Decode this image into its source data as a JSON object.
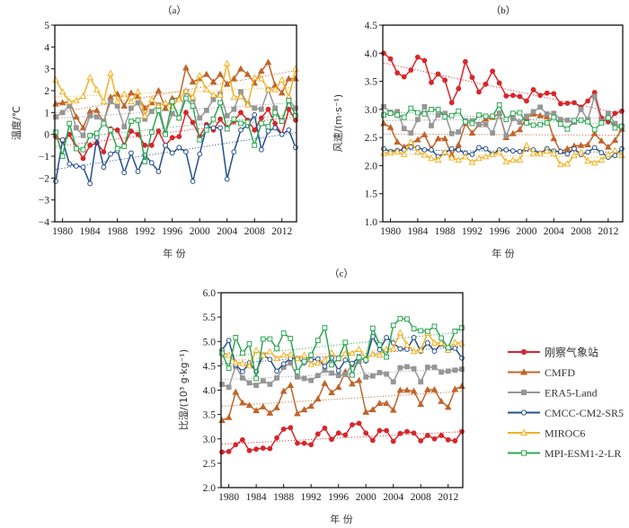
{
  "legend": [
    {
      "name": "刚察气象站",
      "color": "#d7262b",
      "marker": "filled-circle"
    },
    {
      "name": "CMFD",
      "color": "#c0642a",
      "marker": "filled-triangle"
    },
    {
      "name": "ERA5-Land",
      "color": "#969696",
      "marker": "filled-square"
    },
    {
      "name": "CMCC-CM2-SR5",
      "color": "#264f8c",
      "marker": "open-circle"
    },
    {
      "name": "MIROC6",
      "color": "#f2b225",
      "marker": "open-triangle"
    },
    {
      "name": "MPI-ESM1-2-LR",
      "color": "#2ea653",
      "marker": "open-square"
    }
  ],
  "chart_data": [
    {
      "type": "line",
      "panel": "（a）",
      "title": "",
      "xlabel": "年 份",
      "ylabel": "温度/℃",
      "xlim": [
        1979,
        2014
      ],
      "ylim": [
        -4,
        5
      ],
      "yticks": [
        -4,
        -3,
        -2,
        -1,
        0,
        1,
        2,
        3,
        4,
        5
      ],
      "ytick_labels": [
        "−4",
        "−3",
        "−2",
        "−1",
        "0",
        "1",
        "2",
        "3",
        "4",
        "5"
      ],
      "xticks": [
        1980,
        1984,
        1988,
        1992,
        1996,
        2000,
        2004,
        2008,
        2012
      ],
      "xtick_labels": [
        "1980",
        "1984",
        "1988",
        "1992",
        "1996",
        "2000",
        "2004",
        "2008",
        "2012"
      ],
      "trendlines": true,
      "x": [
        1979,
        1980,
        1981,
        1982,
        1983,
        1984,
        1985,
        1986,
        1987,
        1988,
        1989,
        1990,
        1991,
        1992,
        1993,
        1994,
        1995,
        1996,
        1997,
        1998,
        1999,
        2000,
        2001,
        2002,
        2003,
        2004,
        2005,
        2006,
        2007,
        2008,
        2009,
        2010,
        2011,
        2012,
        2013,
        2014
      ],
      "series": [
        {
          "name": "刚察气象站",
          "values": [
            -0.1,
            -0.3,
            0.0,
            -0.6,
            -1.1,
            -0.5,
            -0.4,
            -0.8,
            0.25,
            0.2,
            -0.5,
            0.15,
            0.0,
            -0.5,
            -0.5,
            0.15,
            -0.5,
            -0.15,
            -0.1,
            1.0,
            0.55,
            -0.1,
            0.45,
            0.2,
            0.7,
            0.3,
            0.6,
            1.0,
            0.65,
            0.2,
            0.75,
            1.15,
            0.5,
            0.0,
            1.15,
            0.65
          ]
        },
        {
          "name": "CMFD",
          "values": [
            1.4,
            1.45,
            1.5,
            0.8,
            0.3,
            1.05,
            1.1,
            0.55,
            1.7,
            1.85,
            1.3,
            1.9,
            1.75,
            1.2,
            1.45,
            2.0,
            1.2,
            1.65,
            1.65,
            3.05,
            2.4,
            2.55,
            2.75,
            2.4,
            2.75,
            2.3,
            2.55,
            3.0,
            2.75,
            2.35,
            2.9,
            3.3,
            2.25,
            1.9,
            2.55,
            2.55
          ]
        },
        {
          "name": "ERA5-Land",
          "values": [
            0.8,
            1.0,
            1.3,
            0.3,
            -0.05,
            0.85,
            0.8,
            0.6,
            1.5,
            1.3,
            0.35,
            1.2,
            1.45,
            0.7,
            1.05,
            1.35,
            0.05,
            0.95,
            0.75,
            1.95,
            1.6,
            0.75,
            1.1,
            1.6,
            1.85,
            0.85,
            1.15,
            1.95,
            1.4,
            1.2,
            1.15,
            2.05,
            1.2,
            0.6,
            1.6,
            1.2
          ]
        },
        {
          "name": "CMCC-CM2-SR5",
          "values": [
            -2.15,
            -0.25,
            -1.35,
            -1.45,
            -1.5,
            -2.25,
            -0.15,
            -1.5,
            -0.9,
            -0.75,
            -1.75,
            -0.85,
            -1.7,
            -0.95,
            -1.3,
            -1.7,
            -0.5,
            -0.85,
            -0.6,
            -0.8,
            -2.15,
            -0.9,
            0.35,
            0.3,
            0.3,
            -2.05,
            -0.8,
            0.2,
            0.4,
            0.9,
            -0.7,
            0.15,
            0.3,
            0.0,
            0.2,
            -0.6
          ]
        },
        {
          "name": "MIROC6",
          "values": [
            2.5,
            1.95,
            1.5,
            1.55,
            1.75,
            2.6,
            2.05,
            1.5,
            2.8,
            1.5,
            1.85,
            1.5,
            1.95,
            0.85,
            1.6,
            1.3,
            1.45,
            1.3,
            1.6,
            2.0,
            1.7,
            2.7,
            2.05,
            1.8,
            1.8,
            3.25,
            1.7,
            1.75,
            1.35,
            2.6,
            2.55,
            2.05,
            2.05,
            2.5,
            1.7,
            3.0
          ]
        },
        {
          "name": "MPI-ESM1-2-LR",
          "values": [
            0.1,
            -1.0,
            0.5,
            -0.65,
            -0.7,
            -0.05,
            0.05,
            0.5,
            0.2,
            -0.65,
            -0.55,
            0.6,
            0.65,
            -1.25,
            0.1,
            1.1,
            0.0,
            1.5,
            0.75,
            1.65,
            1.3,
            -0.25,
            0.2,
            0.7,
            1.45,
            0.25,
            0.7,
            0.5,
            0.55,
            -0.5,
            0.5,
            0.35,
            1.0,
            0.6,
            1.55,
            0.85
          ]
        }
      ]
    },
    {
      "type": "line",
      "panel": "（b）",
      "title": "",
      "xlabel": "年 份",
      "ylabel": "风速/(m·s⁻¹)",
      "xlim": [
        1979,
        2014
      ],
      "ylim": [
        1.0,
        4.5
      ],
      "yticks": [
        1.0,
        1.5,
        2.0,
        2.5,
        3.0,
        3.5,
        4.0,
        4.5
      ],
      "ytick_labels": [
        "1.0",
        "1.5",
        "2.0",
        "2.5",
        "3.0",
        "3.5",
        "4.0",
        "4.5"
      ],
      "xticks": [
        1980,
        1984,
        1988,
        1992,
        1996,
        2000,
        2004,
        2008,
        2012
      ],
      "xtick_labels": [
        "1980",
        "1984",
        "1988",
        "1992",
        "1996",
        "2000",
        "2004",
        "2008",
        "2012"
      ],
      "trendlines": true,
      "x": [
        1979,
        1980,
        1981,
        1982,
        1983,
        1984,
        1985,
        1986,
        1987,
        1988,
        1989,
        1990,
        1991,
        1992,
        1993,
        1994,
        1995,
        1996,
        1997,
        1998,
        1999,
        2000,
        2001,
        2002,
        2003,
        2004,
        2005,
        2006,
        2007,
        2008,
        2009,
        2010,
        2011,
        2012,
        2013,
        2014
      ],
      "series": [
        {
          "name": "刚察气象站",
          "values": [
            4.0,
            3.9,
            3.65,
            3.58,
            3.7,
            3.93,
            3.87,
            3.48,
            3.63,
            3.52,
            3.12,
            3.37,
            3.85,
            3.57,
            3.31,
            3.45,
            3.68,
            3.47,
            3.24,
            3.25,
            3.23,
            3.15,
            3.35,
            3.25,
            3.29,
            3.28,
            3.1,
            3.11,
            3.12,
            3.04,
            3.15,
            3.3,
            2.85,
            2.78,
            2.93,
            2.97
          ]
        },
        {
          "name": "CMFD",
          "values": [
            2.75,
            2.68,
            2.42,
            2.33,
            2.4,
            2.46,
            2.55,
            2.3,
            2.48,
            2.48,
            2.19,
            2.37,
            2.75,
            2.58,
            2.73,
            2.83,
            2.86,
            2.93,
            2.5,
            2.57,
            2.64,
            2.85,
            2.92,
            2.89,
            2.87,
            2.48,
            2.25,
            2.3,
            2.35,
            2.36,
            2.37,
            2.57,
            2.44,
            2.33,
            2.45,
            2.65
          ]
        },
        {
          "name": "ERA5-Land",
          "values": [
            3.05,
            2.95,
            2.96,
            2.66,
            2.58,
            2.82,
            3.05,
            2.71,
            2.9,
            2.93,
            2.57,
            2.6,
            2.8,
            2.8,
            2.73,
            2.73,
            2.58,
            2.93,
            2.53,
            2.84,
            2.77,
            2.88,
            2.96,
            3.04,
            2.92,
            2.93,
            2.82,
            2.81,
            2.77,
            3.0,
            2.82,
            3.23,
            2.78,
            2.93,
            2.75,
            2.69
          ]
        },
        {
          "name": "CMCC-CM2-SR5",
          "values": [
            2.3,
            2.25,
            2.27,
            2.28,
            2.33,
            2.32,
            2.28,
            2.28,
            2.16,
            2.23,
            2.3,
            2.28,
            2.22,
            2.2,
            2.32,
            2.3,
            2.2,
            2.28,
            2.28,
            2.26,
            2.25,
            2.3,
            2.28,
            2.22,
            2.3,
            2.26,
            2.25,
            2.21,
            2.3,
            2.2,
            2.24,
            2.32,
            2.23,
            2.15,
            2.18,
            2.3
          ]
        },
        {
          "name": "MIROC6",
          "values": [
            2.22,
            2.23,
            2.25,
            2.2,
            2.42,
            2.24,
            2.19,
            2.13,
            2.1,
            2.24,
            2.14,
            2.1,
            2.16,
            2.06,
            2.13,
            2.16,
            2.2,
            2.24,
            2.07,
            2.1,
            2.1,
            2.36,
            2.22,
            2.22,
            2.26,
            2.22,
            2.02,
            2.03,
            2.18,
            2.24,
            2.08,
            2.05,
            2.1,
            2.2,
            2.27,
            2.18
          ]
        },
        {
          "name": "MPI-ESM1-2-LR",
          "values": [
            2.9,
            2.93,
            2.9,
            2.86,
            3.02,
            2.94,
            2.92,
            3.0,
            3.0,
            2.87,
            2.89,
            2.97,
            2.78,
            2.75,
            2.9,
            2.88,
            2.88,
            3.08,
            2.82,
            2.93,
            2.94,
            2.76,
            2.72,
            2.73,
            2.76,
            2.86,
            2.74,
            2.65,
            2.8,
            2.81,
            2.78,
            2.64,
            2.76,
            2.85,
            2.67,
            2.7
          ]
        }
      ]
    },
    {
      "type": "line",
      "panel": "（c）",
      "title": "",
      "xlabel": "年 份",
      "ylabel": "比湿/(10³ g·kg⁻¹)",
      "xlim": [
        1979,
        2014
      ],
      "ylim": [
        2.0,
        6.0
      ],
      "yticks": [
        2.0,
        2.5,
        3.0,
        3.5,
        4.0,
        4.5,
        5.0,
        5.5,
        6.0
      ],
      "ytick_labels": [
        "2.0",
        "2.5",
        "3.0",
        "3.5",
        "4.0",
        "4.5",
        "5.0",
        "5.5",
        "6.0"
      ],
      "xticks": [
        1980,
        1984,
        1988,
        1992,
        1996,
        2000,
        2004,
        2008,
        2012
      ],
      "xtick_labels": [
        "1980",
        "1984",
        "1988",
        "1992",
        "1996",
        "2000",
        "2004",
        "2008",
        "2012"
      ],
      "trendlines": true,
      "x": [
        1979,
        1980,
        1981,
        1982,
        1983,
        1984,
        1985,
        1986,
        1987,
        1988,
        1989,
        1990,
        1991,
        1992,
        1993,
        1994,
        1995,
        1996,
        1997,
        1998,
        1999,
        2000,
        2001,
        2002,
        2003,
        2004,
        2005,
        2006,
        2007,
        2008,
        2009,
        2010,
        2011,
        2012,
        2013,
        2014
      ],
      "series": [
        {
          "name": "刚察气象站",
          "values": [
            2.73,
            2.74,
            2.88,
            2.98,
            2.76,
            2.79,
            2.81,
            2.8,
            3.02,
            3.2,
            3.23,
            2.91,
            2.91,
            2.88,
            3.1,
            3.22,
            2.99,
            3.12,
            3.08,
            3.29,
            3.32,
            3.12,
            2.97,
            3.17,
            3.17,
            2.95,
            3.11,
            3.15,
            3.12,
            2.96,
            3.07,
            3.0,
            3.07,
            2.98,
            2.96,
            3.15
          ]
        },
        {
          "name": "CMFD",
          "values": [
            3.38,
            3.44,
            3.96,
            3.74,
            3.69,
            3.58,
            3.66,
            3.53,
            3.64,
            3.98,
            4.1,
            3.52,
            3.6,
            3.67,
            3.82,
            4.14,
            3.95,
            4.06,
            4.38,
            4.13,
            4.2,
            3.55,
            3.6,
            3.73,
            3.73,
            3.59,
            4.0,
            4.0,
            3.98,
            3.71,
            4.01,
            4.01,
            3.77,
            3.65,
            4.02,
            4.08
          ]
        },
        {
          "name": "ERA5-Land",
          "values": [
            4.12,
            4.06,
            4.49,
            4.25,
            4.15,
            4.1,
            4.19,
            4.12,
            4.25,
            4.47,
            4.56,
            4.27,
            4.24,
            4.2,
            4.3,
            4.41,
            4.35,
            4.3,
            4.32,
            4.52,
            4.59,
            4.27,
            4.29,
            4.36,
            4.33,
            4.17,
            4.46,
            4.48,
            4.44,
            4.17,
            4.47,
            4.47,
            4.37,
            4.39,
            4.41,
            4.43
          ]
        },
        {
          "name": "CMCC-CM2-SR5",
          "values": [
            4.82,
            5.02,
            4.52,
            4.38,
            4.56,
            4.38,
            4.72,
            4.63,
            4.39,
            4.54,
            4.65,
            4.65,
            4.56,
            4.62,
            4.64,
            4.49,
            4.66,
            4.4,
            4.62,
            4.55,
            4.68,
            4.6,
            5.1,
            4.83,
            5.08,
            4.97,
            4.85,
            4.84,
            5.08,
            4.8,
            4.97,
            4.8,
            4.95,
            4.82,
            4.86,
            4.66
          ]
        },
        {
          "name": "MIROC6",
          "values": [
            4.78,
            4.72,
            4.57,
            4.55,
            4.5,
            4.82,
            4.72,
            4.79,
            4.65,
            4.72,
            4.73,
            4.65,
            4.72,
            4.53,
            4.56,
            4.62,
            4.77,
            4.64,
            4.75,
            4.76,
            4.84,
            4.65,
            4.74,
            4.72,
            4.84,
            4.85,
            5.18,
            4.93,
            4.8,
            4.82,
            5.17,
            4.97,
            4.97,
            4.82,
            4.98,
            4.96
          ]
        },
        {
          "name": "MPI-ESM1-2-LR",
          "values": [
            4.76,
            4.45,
            5.08,
            4.76,
            4.95,
            4.24,
            5.05,
            5.05,
            4.86,
            5.17,
            5.06,
            4.38,
            4.59,
            4.72,
            5.02,
            5.28,
            4.52,
            4.65,
            4.98,
            4.31,
            4.67,
            4.62,
            5.27,
            4.93,
            4.68,
            5.33,
            5.47,
            5.46,
            5.26,
            5.22,
            5.21,
            5.31,
            5.07,
            4.87,
            5.21,
            5.28
          ]
        }
      ]
    }
  ]
}
